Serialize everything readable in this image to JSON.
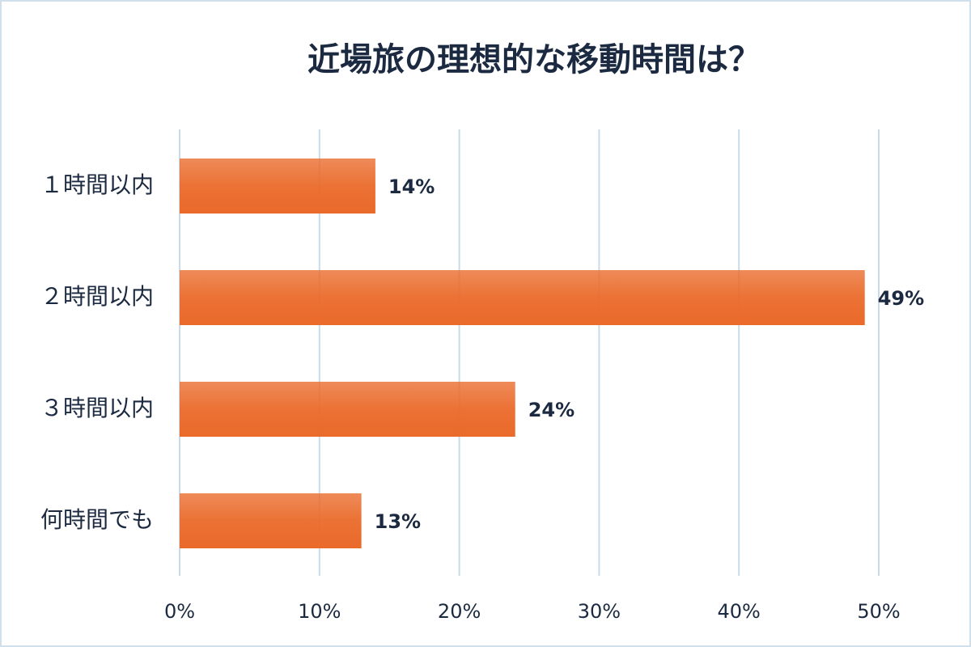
{
  "chart_data": {
    "type": "bar",
    "orientation": "horizontal",
    "title": "近場旅の理想的な移動時間は？",
    "categories": [
      "１時間以内",
      "２時間以内",
      "３時間以内",
      "何時間でも"
    ],
    "values": [
      14,
      49,
      24,
      13
    ],
    "value_labels": [
      "14%",
      "49%",
      "24%",
      "13%"
    ],
    "color": "#ea6a2a",
    "xlim": [
      0,
      50
    ],
    "xticks": [
      {
        "value": 0,
        "label": "0%"
      },
      {
        "value": 10,
        "label": "10%"
      },
      {
        "value": 20,
        "label": "20%"
      },
      {
        "value": 30,
        "label": "30%"
      },
      {
        "value": 40,
        "label": "40%"
      },
      {
        "value": 50,
        "label": "50%"
      }
    ],
    "grid": true
  }
}
